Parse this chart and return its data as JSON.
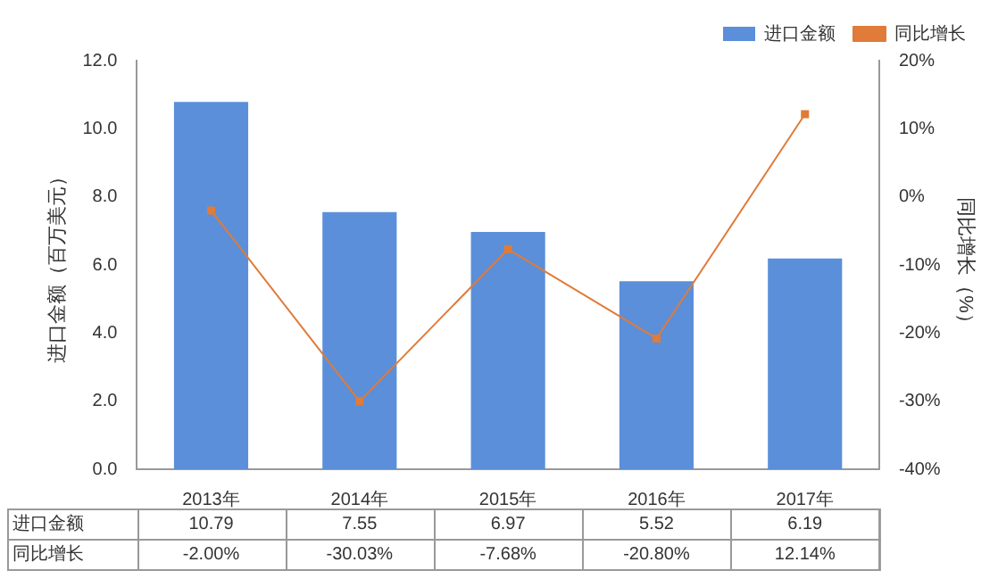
{
  "chart_data": {
    "type": "bar",
    "ylabel": "进口金额（百万美元）",
    "y2label": "同比增长（%）",
    "categories": [
      "2013年",
      "2014年",
      "2015年",
      "2016年",
      "2017年"
    ],
    "series": [
      {
        "name": "进口金额",
        "color": "#5b8fd9",
        "values": [
          10.79,
          7.55,
          6.97,
          5.52,
          6.19
        ],
        "value_labels": [
          "10.79",
          "7.55",
          "6.97",
          "5.52",
          "6.19"
        ]
      },
      {
        "name": "同比增长",
        "type": "line",
        "axis": "y2",
        "color": "#e07b39",
        "values": [
          -2.0,
          -30.03,
          -7.68,
          -20.8,
          12.14
        ],
        "value_labels": [
          "-2.00%",
          "-30.03%",
          "-7.68%",
          "-20.80%",
          "12.14%"
        ]
      }
    ],
    "ylim": [
      0,
      12
    ],
    "yticks": [
      {
        "value": 0,
        "label": "0.0"
      },
      {
        "value": 2,
        "label": "2.0"
      },
      {
        "value": 4,
        "label": "4.0"
      },
      {
        "value": 6,
        "label": "6.0"
      },
      {
        "value": 8,
        "label": "8.0"
      },
      {
        "value": 10,
        "label": "10.0"
      },
      {
        "value": 12,
        "label": "12.0"
      }
    ],
    "y2lim": [
      -40,
      20
    ],
    "y2ticks": [
      {
        "value": -40,
        "label": "-40%"
      },
      {
        "value": -30,
        "label": "-30%"
      },
      {
        "value": -20,
        "label": "-20%"
      },
      {
        "value": -10,
        "label": "-10%"
      },
      {
        "value": 0,
        "label": "0%"
      },
      {
        "value": 10,
        "label": "10%"
      },
      {
        "value": 20,
        "label": "20%"
      }
    ],
    "legend": "top right",
    "marker": "square",
    "line_style": "solid",
    "grid": false
  }
}
